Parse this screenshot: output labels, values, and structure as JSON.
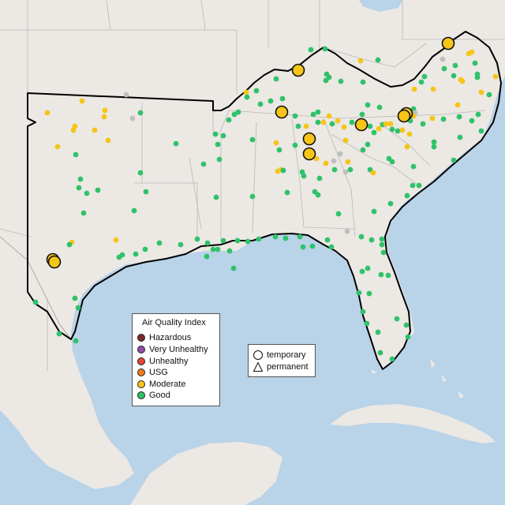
{
  "legend": {
    "title": "Air Quality Index",
    "categories": [
      {
        "label": "Hazardous",
        "color": "#7e2a26"
      },
      {
        "label": "Very Unhealthy",
        "color": "#8f4fa8"
      },
      {
        "label": "Unhealthy",
        "color": "#e8443a"
      },
      {
        "label": "USG",
        "color": "#ef7d22"
      },
      {
        "label": "Moderate",
        "color": "#f5c518"
      },
      {
        "label": "Good",
        "color": "#2fc26a"
      }
    ],
    "no_data_color": "#bfbfbf"
  },
  "monitor_type_legend": {
    "items": [
      {
        "label": "temporary",
        "shape": "circle"
      },
      {
        "label": "permanent",
        "shape": "triangle"
      }
    ]
  },
  "map": {
    "land_color": "#ece8e3",
    "water_color": "#b9d3e8",
    "region_outline_color": "#000000"
  }
}
